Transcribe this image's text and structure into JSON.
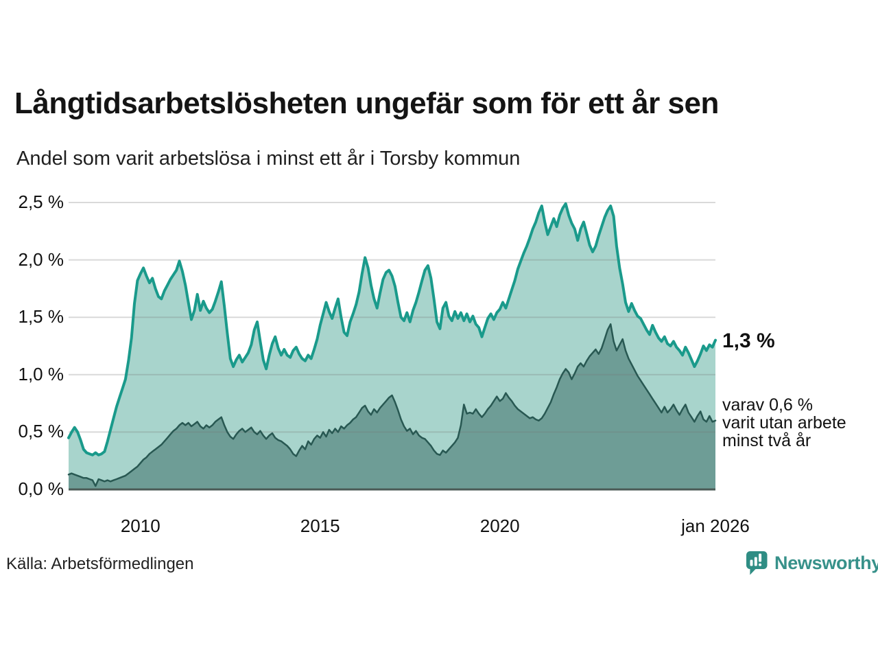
{
  "header": {
    "title": "Långtidsarbetslösheten ungefär som för ett år sen",
    "subtitle": "Andel som varit arbetslösa i minst ett år i Torsby kommun"
  },
  "chart_data": {
    "type": "area",
    "title": "Långtidsarbetslösheten ungefär som för ett år sen",
    "subtitle": "Andel som varit arbetslösa i minst ett år i Torsby kommun",
    "unit": "%",
    "ylim": [
      0,
      2.5
    ],
    "grid": true,
    "x_start_year": 2008,
    "points_per_year": 12,
    "y_ticks": [
      {
        "value": 0.0,
        "label": "0,0 %"
      },
      {
        "value": 0.5,
        "label": "0,5 %"
      },
      {
        "value": 1.0,
        "label": "1,0 %"
      },
      {
        "value": 1.5,
        "label": "1,5 %"
      },
      {
        "value": 2.0,
        "label": "2,0 %"
      },
      {
        "value": 2.5,
        "label": "2,5 %"
      }
    ],
    "x_ticks": [
      {
        "year": 2010,
        "label": "2010"
      },
      {
        "year": 2015,
        "label": "2015"
      },
      {
        "year": 2020,
        "label": "2020"
      },
      {
        "year": 2026,
        "label": "jan 2026"
      }
    ],
    "series": [
      {
        "id": "minst-ett-ar",
        "latest_label": "1,3 %",
        "latest_value": 1.3,
        "fill": "#a8d4cc",
        "stroke": "#1a9a8b",
        "stroke_width": 4,
        "values": [
          0.45,
          0.5,
          0.54,
          0.5,
          0.43,
          0.35,
          0.32,
          0.31,
          0.3,
          0.32,
          0.3,
          0.31,
          0.33,
          0.42,
          0.52,
          0.62,
          0.72,
          0.8,
          0.88,
          0.96,
          1.12,
          1.32,
          1.62,
          1.82,
          1.88,
          1.93,
          1.86,
          1.8,
          1.84,
          1.75,
          1.68,
          1.66,
          1.73,
          1.78,
          1.83,
          1.87,
          1.91,
          1.99,
          1.9,
          1.78,
          1.63,
          1.48,
          1.56,
          1.7,
          1.56,
          1.64,
          1.58,
          1.54,
          1.57,
          1.64,
          1.72,
          1.81,
          1.6,
          1.36,
          1.14,
          1.07,
          1.13,
          1.17,
          1.11,
          1.15,
          1.19,
          1.26,
          1.39,
          1.46,
          1.29,
          1.13,
          1.05,
          1.17,
          1.27,
          1.33,
          1.23,
          1.17,
          1.22,
          1.17,
          1.15,
          1.21,
          1.24,
          1.18,
          1.14,
          1.12,
          1.17,
          1.14,
          1.22,
          1.31,
          1.43,
          1.53,
          1.63,
          1.55,
          1.49,
          1.58,
          1.66,
          1.5,
          1.37,
          1.34,
          1.46,
          1.53,
          1.61,
          1.72,
          1.88,
          2.02,
          1.93,
          1.78,
          1.66,
          1.58,
          1.71,
          1.83,
          1.89,
          1.91,
          1.86,
          1.77,
          1.63,
          1.5,
          1.47,
          1.54,
          1.46,
          1.56,
          1.63,
          1.72,
          1.82,
          1.91,
          1.95,
          1.84,
          1.66,
          1.46,
          1.4,
          1.58,
          1.63,
          1.51,
          1.47,
          1.55,
          1.49,
          1.54,
          1.47,
          1.53,
          1.46,
          1.51,
          1.44,
          1.41,
          1.33,
          1.41,
          1.49,
          1.53,
          1.48,
          1.54,
          1.57,
          1.63,
          1.58,
          1.66,
          1.74,
          1.82,
          1.92,
          1.99,
          2.06,
          2.12,
          2.19,
          2.27,
          2.33,
          2.41,
          2.47,
          2.33,
          2.22,
          2.29,
          2.36,
          2.29,
          2.39,
          2.45,
          2.49,
          2.39,
          2.32,
          2.27,
          2.17,
          2.27,
          2.33,
          2.23,
          2.13,
          2.07,
          2.12,
          2.21,
          2.29,
          2.37,
          2.43,
          2.47,
          2.38,
          2.12,
          1.93,
          1.79,
          1.63,
          1.55,
          1.62,
          1.56,
          1.51,
          1.49,
          1.44,
          1.39,
          1.35,
          1.43,
          1.37,
          1.32,
          1.29,
          1.33,
          1.27,
          1.25,
          1.29,
          1.24,
          1.21,
          1.17,
          1.24,
          1.19,
          1.13,
          1.07,
          1.12,
          1.18,
          1.25,
          1.21,
          1.26,
          1.24,
          1.3
        ]
      },
      {
        "id": "minst-tva-ar",
        "latest_label": "varav 0,6 %",
        "latest_value": 0.6,
        "fill": "#6e9d96",
        "stroke": "#285852",
        "stroke_width": 2.5,
        "values": [
          0.13,
          0.14,
          0.13,
          0.12,
          0.11,
          0.1,
          0.1,
          0.09,
          0.08,
          0.03,
          0.09,
          0.08,
          0.07,
          0.08,
          0.07,
          0.08,
          0.09,
          0.1,
          0.11,
          0.12,
          0.14,
          0.16,
          0.18,
          0.2,
          0.23,
          0.26,
          0.28,
          0.31,
          0.33,
          0.35,
          0.37,
          0.39,
          0.42,
          0.45,
          0.48,
          0.51,
          0.53,
          0.56,
          0.58,
          0.56,
          0.58,
          0.55,
          0.57,
          0.59,
          0.55,
          0.53,
          0.56,
          0.54,
          0.56,
          0.59,
          0.61,
          0.63,
          0.56,
          0.5,
          0.46,
          0.44,
          0.48,
          0.51,
          0.53,
          0.5,
          0.52,
          0.54,
          0.5,
          0.48,
          0.51,
          0.47,
          0.44,
          0.47,
          0.49,
          0.45,
          0.43,
          0.42,
          0.4,
          0.38,
          0.35,
          0.31,
          0.29,
          0.34,
          0.38,
          0.35,
          0.42,
          0.39,
          0.44,
          0.47,
          0.45,
          0.5,
          0.46,
          0.52,
          0.49,
          0.53,
          0.5,
          0.55,
          0.53,
          0.56,
          0.58,
          0.61,
          0.63,
          0.67,
          0.71,
          0.73,
          0.68,
          0.65,
          0.7,
          0.67,
          0.71,
          0.74,
          0.77,
          0.8,
          0.82,
          0.76,
          0.69,
          0.61,
          0.55,
          0.51,
          0.53,
          0.48,
          0.51,
          0.47,
          0.45,
          0.44,
          0.41,
          0.38,
          0.34,
          0.31,
          0.3,
          0.34,
          0.32,
          0.35,
          0.38,
          0.41,
          0.45,
          0.56,
          0.74,
          0.66,
          0.67,
          0.66,
          0.7,
          0.66,
          0.63,
          0.66,
          0.7,
          0.73,
          0.77,
          0.81,
          0.77,
          0.79,
          0.84,
          0.8,
          0.77,
          0.73,
          0.7,
          0.68,
          0.66,
          0.64,
          0.62,
          0.63,
          0.61,
          0.6,
          0.62,
          0.66,
          0.71,
          0.76,
          0.83,
          0.89,
          0.96,
          1.01,
          1.05,
          1.02,
          0.96,
          1.01,
          1.07,
          1.1,
          1.07,
          1.12,
          1.16,
          1.19,
          1.22,
          1.18,
          1.23,
          1.31,
          1.39,
          1.44,
          1.29,
          1.21,
          1.26,
          1.31,
          1.21,
          1.14,
          1.09,
          1.04,
          0.99,
          0.95,
          0.91,
          0.87,
          0.83,
          0.79,
          0.75,
          0.71,
          0.67,
          0.72,
          0.67,
          0.7,
          0.74,
          0.69,
          0.65,
          0.7,
          0.74,
          0.67,
          0.63,
          0.59,
          0.64,
          0.68,
          0.61,
          0.59,
          0.64,
          0.59,
          0.6
        ]
      }
    ]
  },
  "annotations": {
    "latest_total": "1,3 %",
    "note_line1": "varav 0,6 %",
    "note_line2": "varit utan arbete",
    "note_line3": "minst två år"
  },
  "footer": {
    "source": "Källa: Arbetsförmedlingen",
    "brand": "Newsworthy"
  },
  "colors": {
    "background": "#ffffff",
    "title_text": "#141414",
    "body_text": "#111111",
    "gridline": "#d9d9d9",
    "axis_baseline": "#4b5a56",
    "series_total_fill": "#a8d4cc",
    "series_total_stroke": "#1a9a8b",
    "series_two_year_fill": "#6e9d96",
    "series_two_year_stroke": "#285852",
    "brand_teal": "#37918a"
  }
}
